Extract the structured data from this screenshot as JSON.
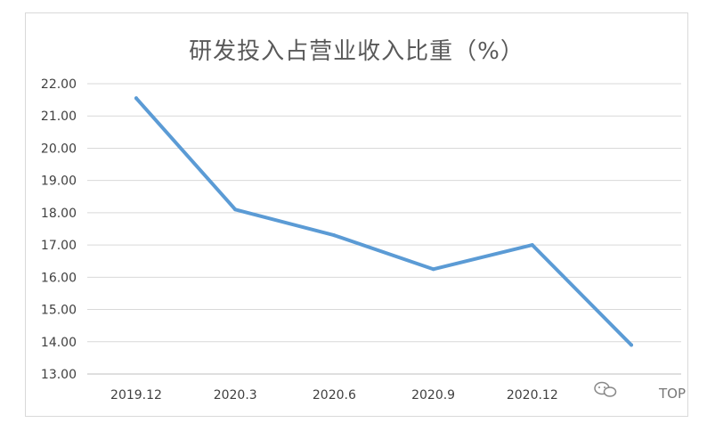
{
  "chart_data": {
    "type": "line",
    "title": "研发投入占营业收入比重（%）",
    "xlabel": "",
    "ylabel": "",
    "categories": [
      "2019.12",
      "2020.3",
      "2020.6",
      "2020.9",
      "2020.12",
      ""
    ],
    "series": [
      {
        "values": [
          21.55,
          18.1,
          17.3,
          16.25,
          17.0,
          13.9
        ],
        "color": "#5b9bd5"
      }
    ],
    "ylim": [
      13.0,
      22.0
    ],
    "yticks": [
      "13.00",
      "14.00",
      "15.00",
      "16.00",
      "17.00",
      "18.00",
      "19.00",
      "20.00",
      "21.00",
      "22.00"
    ],
    "grid": true,
    "legend": "none"
  },
  "watermark": {
    "text": "TOP",
    "icon": "wechat-icon"
  }
}
